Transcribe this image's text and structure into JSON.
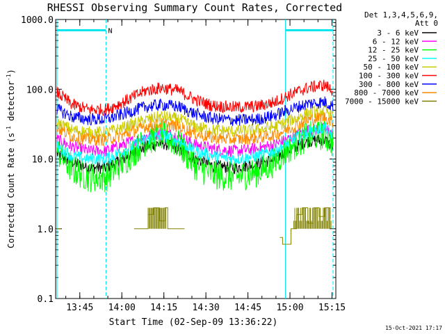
{
  "chart_data": {
    "type": "line",
    "title": "RHESSI Observing Summary Count Rates, Corrected",
    "xlabel": "Start Time (02-Sep-09 13:36:22)",
    "ylabel_main": "Corrected Count Rate (s",
    "ylabel_sup1": "-1",
    "ylabel_mid": " detector",
    "ylabel_sup2": "-1",
    "ylabel_end": ")",
    "yscale": "log",
    "ylim": [
      0.1,
      1000
    ],
    "xlim_minutes": [
      0,
      100
    ],
    "x_tick_labels": [
      "13:45",
      "14:00",
      "14:15",
      "14:30",
      "14:45",
      "15:00",
      "15:15"
    ],
    "x_tick_minutes": [
      8.63,
      23.63,
      38.63,
      53.63,
      68.63,
      83.63,
      98.63
    ],
    "y_tick_labels": [
      "0.1",
      "1.0",
      "10.0",
      "100.0",
      "1000.0"
    ],
    "y_tick_values": [
      0.1,
      1,
      10,
      100,
      1000
    ],
    "legend_header": [
      "Det 1,3,4,5,6,9,",
      "Att 0"
    ],
    "legend_position": "right",
    "annotation_marker": "N",
    "timestamp": "15-Oct-2021 17:17",
    "night_bars_minutes": [
      [
        0.5,
        18
      ],
      [
        82,
        99
      ]
    ],
    "night_boundaries_minutes": [
      0.5,
      18,
      82,
      99
    ],
    "series": [
      {
        "name": "3 - 6 keV",
        "color": "#000000",
        "values": [
          [
            0.5,
            12
          ],
          [
            6,
            9
          ],
          [
            12,
            7.5
          ],
          [
            18,
            7.5
          ],
          [
            24,
            10
          ],
          [
            32,
            15
          ],
          [
            38,
            17
          ],
          [
            44,
            14
          ],
          [
            50,
            10
          ],
          [
            56,
            8
          ],
          [
            64,
            7.5
          ],
          [
            72,
            8.5
          ],
          [
            78,
            10
          ],
          [
            84,
            14
          ],
          [
            90,
            18
          ],
          [
            96,
            19
          ],
          [
            99,
            15
          ]
        ]
      },
      {
        "name": "6 - 12 keV",
        "color": "#ff00ff",
        "values": [
          [
            0.5,
            19
          ],
          [
            6,
            15
          ],
          [
            12,
            13
          ],
          [
            18,
            13
          ],
          [
            24,
            16
          ],
          [
            32,
            21
          ],
          [
            38,
            24
          ],
          [
            44,
            21
          ],
          [
            50,
            16
          ],
          [
            56,
            14
          ],
          [
            64,
            13
          ],
          [
            72,
            14
          ],
          [
            78,
            16
          ],
          [
            84,
            20
          ],
          [
            90,
            26
          ],
          [
            96,
            27
          ],
          [
            99,
            23
          ]
        ]
      },
      {
        "name": "12 - 25 keV",
        "color": "#00ff00",
        "values": [
          [
            0.5,
            13
          ],
          [
            6,
            7
          ],
          [
            12,
            5.5
          ],
          [
            18,
            5.5
          ],
          [
            24,
            9
          ],
          [
            32,
            18
          ],
          [
            38,
            22
          ],
          [
            44,
            16
          ],
          [
            50,
            8
          ],
          [
            56,
            6
          ],
          [
            64,
            5.5
          ],
          [
            72,
            6.5
          ],
          [
            78,
            9
          ],
          [
            84,
            15
          ],
          [
            90,
            21
          ],
          [
            96,
            22
          ],
          [
            99,
            17
          ]
        ]
      },
      {
        "name": "25 - 50 keV",
        "color": "#00ffff",
        "values": [
          [
            0.5,
            15
          ],
          [
            6,
            11
          ],
          [
            12,
            10
          ],
          [
            18,
            10
          ],
          [
            24,
            13
          ],
          [
            32,
            19
          ],
          [
            38,
            22
          ],
          [
            44,
            18
          ],
          [
            50,
            13
          ],
          [
            56,
            11
          ],
          [
            64,
            10
          ],
          [
            72,
            11
          ],
          [
            78,
            13
          ],
          [
            84,
            18
          ],
          [
            90,
            24
          ],
          [
            96,
            28
          ],
          [
            99,
            22
          ]
        ]
      },
      {
        "name": "50 - 100 keV",
        "color": "#cccc00",
        "values": [
          [
            0.5,
            33
          ],
          [
            6,
            26
          ],
          [
            12,
            24
          ],
          [
            18,
            24
          ],
          [
            24,
            28
          ],
          [
            32,
            36
          ],
          [
            38,
            41
          ],
          [
            44,
            37
          ],
          [
            50,
            29
          ],
          [
            56,
            26
          ],
          [
            64,
            25
          ],
          [
            72,
            26
          ],
          [
            78,
            29
          ],
          [
            84,
            36
          ],
          [
            90,
            45
          ],
          [
            96,
            50
          ],
          [
            99,
            42
          ]
        ]
      },
      {
        "name": "100 - 300 keV",
        "color": "#ff0000",
        "values": [
          [
            0.5,
            90
          ],
          [
            6,
            60
          ],
          [
            12,
            51
          ],
          [
            18,
            51
          ],
          [
            24,
            65
          ],
          [
            32,
            95
          ],
          [
            38,
            105
          ],
          [
            44,
            95
          ],
          [
            50,
            70
          ],
          [
            56,
            58
          ],
          [
            64,
            55
          ],
          [
            72,
            57
          ],
          [
            78,
            65
          ],
          [
            84,
            85
          ],
          [
            90,
            105
          ],
          [
            96,
            115
          ],
          [
            99,
            95
          ]
        ]
      },
      {
        "name": "300 - 800 keV",
        "color": "#0000ff",
        "values": [
          [
            0.5,
            52
          ],
          [
            6,
            40
          ],
          [
            12,
            37
          ],
          [
            18,
            37
          ],
          [
            24,
            44
          ],
          [
            32,
            56
          ],
          [
            38,
            60
          ],
          [
            44,
            56
          ],
          [
            50,
            44
          ],
          [
            56,
            38
          ],
          [
            64,
            36
          ],
          [
            72,
            37
          ],
          [
            78,
            42
          ],
          [
            84,
            52
          ],
          [
            90,
            62
          ],
          [
            96,
            66
          ],
          [
            99,
            58
          ]
        ]
      },
      {
        "name": "800 - 7000 keV",
        "color": "#ff8c00",
        "values": [
          [
            0.5,
            28
          ],
          [
            6,
            21
          ],
          [
            12,
            19
          ],
          [
            18,
            19
          ],
          [
            24,
            22
          ],
          [
            32,
            29
          ],
          [
            38,
            32
          ],
          [
            44,
            29
          ],
          [
            50,
            23
          ],
          [
            56,
            20
          ],
          [
            64,
            19
          ],
          [
            72,
            20
          ],
          [
            78,
            22
          ],
          [
            84,
            28
          ],
          [
            90,
            36
          ],
          [
            96,
            40
          ],
          [
            99,
            33
          ]
        ]
      },
      {
        "name": "7000 - 15000 keV",
        "color": "#808000",
        "values": [
          [
            0.5,
            1
          ],
          [
            2,
            1
          ],
          [
            28,
            1
          ],
          [
            32,
            1
          ],
          [
            33,
            1.6
          ],
          [
            35,
            2
          ],
          [
            37,
            1.3
          ],
          [
            39,
            2
          ],
          [
            40,
            1
          ],
          [
            46,
            1
          ],
          [
            80,
            0.75
          ],
          [
            81,
            0.6
          ],
          [
            84,
            1
          ],
          [
            86,
            1.6
          ],
          [
            88,
            2
          ],
          [
            90,
            1.2
          ],
          [
            92,
            2
          ],
          [
            94,
            1.5
          ],
          [
            96,
            2
          ],
          [
            98,
            1.4
          ]
        ]
      }
    ]
  }
}
